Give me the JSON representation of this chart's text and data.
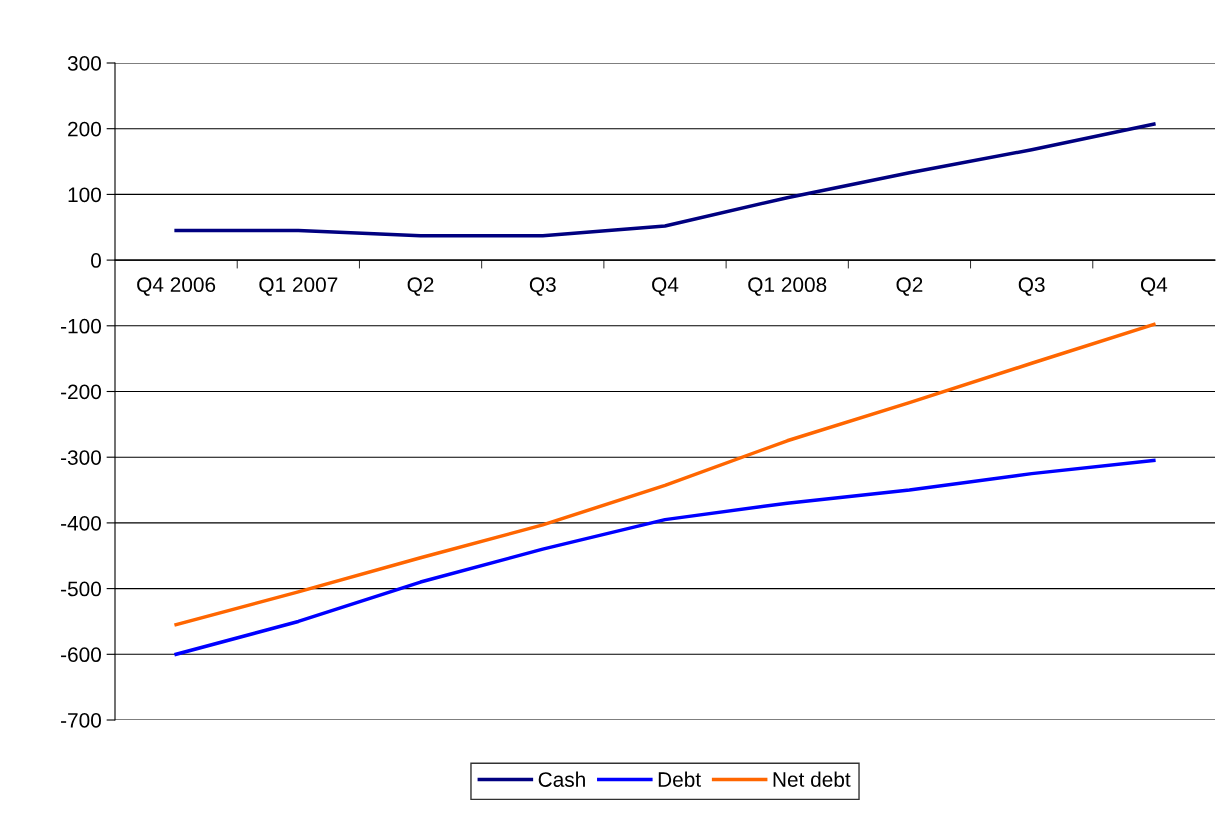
{
  "chart_data": {
    "type": "line",
    "categories": [
      "Q4 2006",
      "Q1 2007",
      "Q2",
      "Q3",
      "Q4",
      "Q1 2008",
      "Q2",
      "Q3",
      "Q4"
    ],
    "series": [
      {
        "name": "Cash",
        "color": "#000080",
        "values": [
          45,
          45,
          37,
          37,
          52,
          95,
          133,
          168,
          207
        ]
      },
      {
        "name": "Debt",
        "color": "#0000ff",
        "values": [
          -600,
          -550,
          -490,
          -440,
          -395,
          -370,
          -350,
          -325,
          -305
        ]
      },
      {
        "name": "Net debt",
        "color": "#ff6600",
        "values": [
          -555,
          -505,
          -453,
          -403,
          -343,
          -275,
          -217,
          -157,
          -98
        ]
      }
    ],
    "ylim": [
      -700,
      300
    ],
    "yticks": [
      -700,
      -600,
      -500,
      -400,
      -300,
      -200,
      -100,
      0,
      100,
      200,
      300
    ],
    "grid": "y",
    "legend": "bottom",
    "marker": "none",
    "line_style": "solid"
  }
}
